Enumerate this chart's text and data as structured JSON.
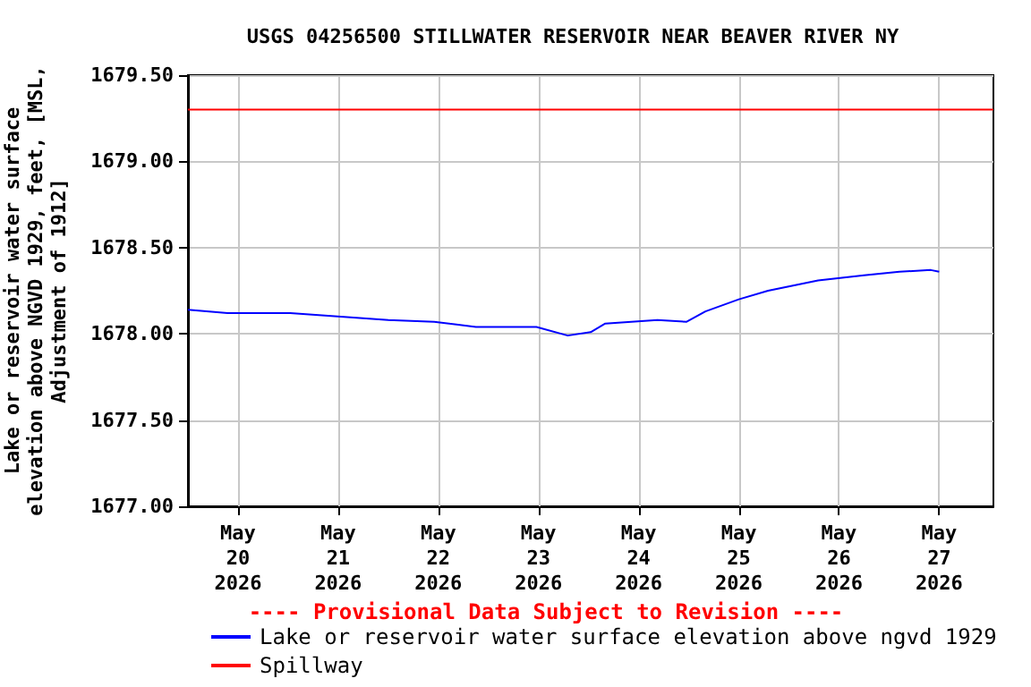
{
  "chart_data": {
    "type": "line",
    "title": "USGS 04256500 STILLWATER RESERVOIR NEAR BEAVER RIVER NY",
    "ylabel": "Lake or reservoir water surface elevation above NGVD 1929, feet, [MSL, Adjustment of 1912]",
    "annotations": [
      "---- Provisional Data Subject to Revision ----"
    ],
    "series": [
      {
        "name": "Lake or reservoir water surface elevation above ngvd 1929",
        "color": "#0000ff",
        "x": [
          "2026-05-19T12:00",
          "2026-05-19T21:30",
          "2026-05-20T12:30",
          "2026-05-21T12:00",
          "2026-05-21T23:00",
          "2026-05-22T09:00",
          "2026-05-22T23:30",
          "2026-05-23T07:00",
          "2026-05-23T12:30",
          "2026-05-23T16:00",
          "2026-05-24T04:30",
          "2026-05-24T11:30",
          "2026-05-24T16:00",
          "2026-05-25T00:00",
          "2026-05-25T07:00",
          "2026-05-25T19:00",
          "2026-05-26T06:00",
          "2026-05-26T14:30",
          "2026-05-26T22:00",
          "2026-05-27T00:00"
        ],
        "values": [
          1678.14,
          1678.12,
          1678.12,
          1678.08,
          1678.07,
          1678.04,
          1678.04,
          1677.99,
          1678.01,
          1678.06,
          1678.08,
          1678.07,
          1678.13,
          1678.2,
          1678.25,
          1678.31,
          1678.34,
          1678.36,
          1678.37,
          1678.36
        ]
      },
      {
        "name": "Spillway",
        "color": "#ff0000",
        "x": [
          "2026-05-19T12:00",
          "2026-05-27T13:00"
        ],
        "values": [
          1679.3,
          1679.3
        ]
      }
    ],
    "xlim": [
      "2026-05-19T12:00",
      "2026-05-27T13:00"
    ],
    "xticks": [
      {
        "value": "2026-05-20",
        "label": "May\n20\n2026"
      },
      {
        "value": "2026-05-21",
        "label": "May\n21\n2026"
      },
      {
        "value": "2026-05-22",
        "label": "May\n22\n2026"
      },
      {
        "value": "2026-05-23",
        "label": "May\n23\n2026"
      },
      {
        "value": "2026-05-24",
        "label": "May\n24\n2026"
      },
      {
        "value": "2026-05-25",
        "label": "May\n25\n2026"
      },
      {
        "value": "2026-05-26",
        "label": "May\n26\n2026"
      },
      {
        "value": "2026-05-27",
        "label": "May\n27\n2026"
      }
    ],
    "ylim": [
      1677,
      1679.5
    ],
    "yticks": [
      {
        "value": 1677,
        "label": "1677.00"
      },
      {
        "value": 1677.5,
        "label": "1677.50"
      },
      {
        "value": 1678,
        "label": "1678.00"
      },
      {
        "value": 1678.5,
        "label": "1678.50"
      },
      {
        "value": 1679,
        "label": "1679.00"
      },
      {
        "value": 1679.5,
        "label": "1679.50"
      }
    ],
    "grid": true,
    "legend": "bottom",
    "marker": "none",
    "line_style": "solid"
  }
}
